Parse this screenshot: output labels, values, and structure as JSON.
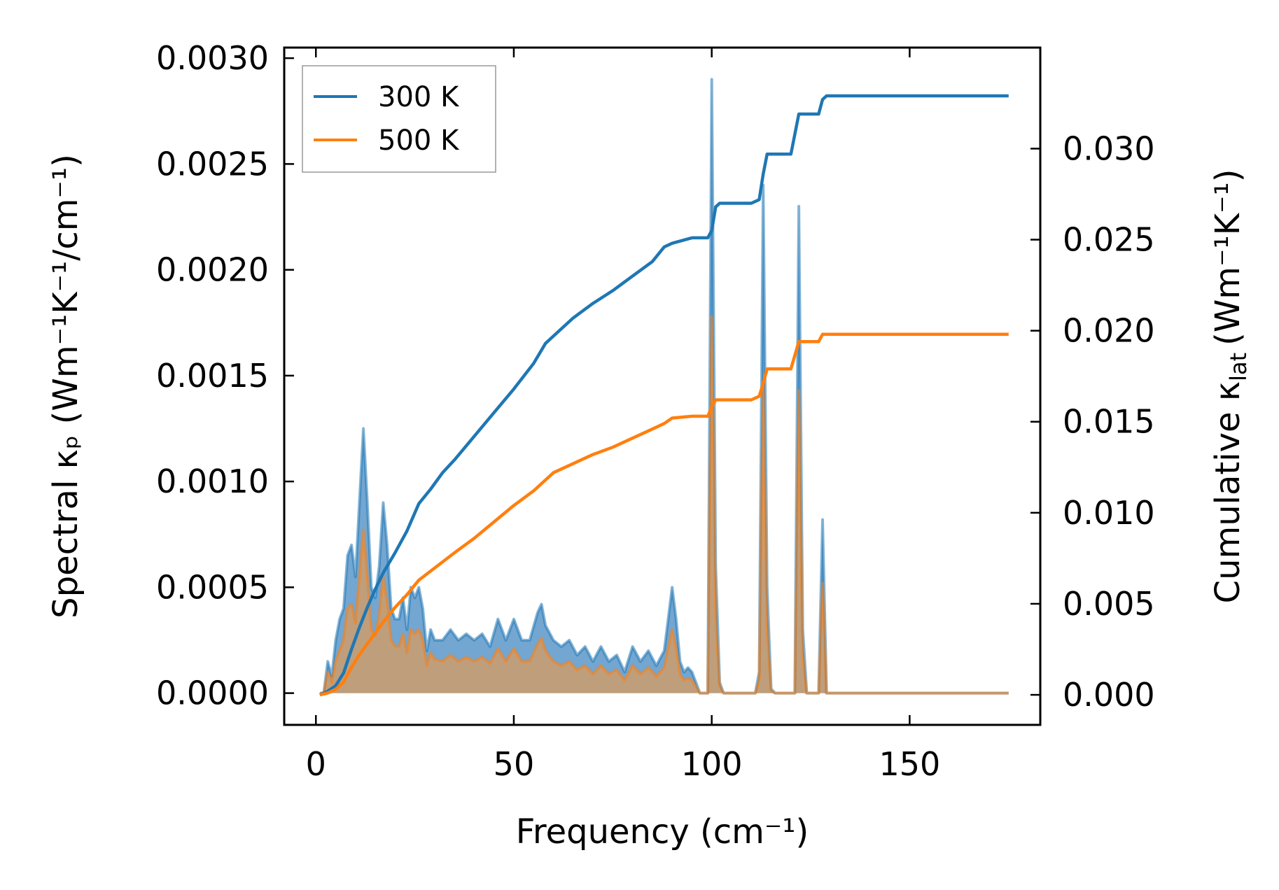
{
  "chart_data": {
    "type": "line",
    "xlabel": "Frequency (cm⁻¹)",
    "ylabel_left": "Spectral κₚ (Wm⁻¹K⁻¹/cm⁻¹)",
    "ylabel_right": "Cumulative κ_lat (Wm⁻¹K⁻¹)",
    "ylabel_right_main": "Cumulative κ",
    "ylabel_right_sub": "lat",
    "ylabel_right_unit": "(Wm⁻¹K⁻¹)",
    "xlim": [
      -8,
      183
    ],
    "ylim_left": [
      -0.00015,
      0.00305
    ],
    "ylim_right": [
      -0.00165,
      0.03555
    ],
    "x_ticks": [
      0,
      50,
      100,
      150
    ],
    "x_tick_labels": [
      "0",
      "50",
      "100",
      "150"
    ],
    "y_left_ticks": [
      0,
      0.0005,
      0.001,
      0.0015,
      0.002,
      0.0025,
      0.003
    ],
    "y_left_tick_labels": [
      "0.0000",
      "0.0005",
      "0.0010",
      "0.0015",
      "0.0020",
      "0.0025",
      "0.0030"
    ],
    "y_right_ticks": [
      0,
      0.005,
      0.01,
      0.015,
      0.02,
      0.025,
      0.03
    ],
    "y_right_tick_labels": [
      "0.000",
      "0.005",
      "0.010",
      "0.015",
      "0.020",
      "0.025",
      "0.030"
    ],
    "legend": {
      "placement": "top-left",
      "entries": [
        "300 K",
        "500 K"
      ]
    },
    "grid": false,
    "colors": {
      "s300": "#1f77b4",
      "s500": "#ff7f0e",
      "s300_fill": "#5a97c8",
      "s500_fill": "#c89d72"
    },
    "series": [
      {
        "name": "300 K",
        "role": "spectral",
        "axis": "left",
        "x": [
          1,
          2,
          3,
          4,
          5,
          6,
          7,
          8,
          9,
          10,
          11,
          12,
          13,
          14,
          15,
          16,
          17,
          18,
          19,
          20,
          21,
          22,
          23,
          24,
          25,
          26,
          27,
          28,
          29,
          30,
          32,
          34,
          36,
          38,
          40,
          42,
          44,
          46,
          48,
          50,
          52,
          54,
          56,
          57,
          58,
          60,
          62,
          64,
          66,
          68,
          70,
          72,
          74,
          76,
          78,
          80,
          82,
          84,
          86,
          88,
          89,
          90,
          91,
          92,
          93,
          94,
          95,
          96,
          97,
          98,
          99,
          100,
          101,
          102,
          103,
          104,
          106,
          108,
          110,
          111,
          112,
          113,
          114,
          115,
          116,
          118,
          120,
          121,
          122,
          123,
          124,
          126,
          127,
          128,
          129,
          130,
          140,
          150,
          160,
          170,
          175
        ],
        "values": [
          0,
          0,
          0.00015,
          8e-05,
          0.00025,
          0.00035,
          0.0004,
          0.00065,
          0.0007,
          0.00055,
          0.0009,
          0.00125,
          0.0009,
          0.0005,
          0.00045,
          0.0006,
          0.0009,
          0.0007,
          0.0004,
          0.00035,
          0.00035,
          0.00045,
          0.0003,
          0.0005,
          0.00045,
          0.0005,
          0.0004,
          0.0002,
          0.0003,
          0.00025,
          0.00025,
          0.0003,
          0.00025,
          0.00028,
          0.00025,
          0.00028,
          0.00022,
          0.00035,
          0.00025,
          0.00035,
          0.00025,
          0.00025,
          0.00038,
          0.00042,
          0.00032,
          0.00025,
          0.00022,
          0.00025,
          0.00018,
          0.00022,
          0.00015,
          0.00022,
          0.00015,
          0.00018,
          0.0001,
          0.00022,
          0.00015,
          0.0002,
          0.00013,
          0.0002,
          0.00035,
          0.0005,
          0.00035,
          0.00015,
          0.0001,
          0.00012,
          0.0001,
          5e-05,
          0,
          0,
          0,
          0.0029,
          0.0006,
          5e-05,
          0,
          0,
          0,
          0,
          0,
          0,
          0.0001,
          0.0024,
          0.0005,
          2e-05,
          0,
          0,
          0,
          0,
          0.0023,
          0.0003,
          0,
          0,
          0,
          0.00082,
          0,
          0,
          0,
          0,
          0,
          0,
          0
        ]
      },
      {
        "name": "500 K",
        "role": "spectral",
        "axis": "left",
        "x": [
          1,
          2,
          3,
          4,
          5,
          6,
          7,
          8,
          9,
          10,
          11,
          12,
          13,
          14,
          15,
          16,
          17,
          18,
          19,
          20,
          21,
          22,
          23,
          24,
          25,
          26,
          27,
          28,
          29,
          30,
          32,
          34,
          36,
          38,
          40,
          42,
          44,
          46,
          48,
          50,
          52,
          54,
          56,
          57,
          58,
          60,
          62,
          64,
          66,
          68,
          70,
          72,
          74,
          76,
          78,
          80,
          82,
          84,
          86,
          88,
          89,
          90,
          91,
          92,
          93,
          94,
          95,
          96,
          97,
          98,
          99,
          100,
          101,
          102,
          103,
          104,
          106,
          108,
          110,
          111,
          112,
          113,
          114,
          115,
          116,
          118,
          120,
          121,
          122,
          123,
          124,
          126,
          127,
          128,
          129,
          130,
          140,
          150,
          160,
          170,
          175
        ],
        "values": [
          0,
          0,
          0.0001,
          5e-05,
          0.00015,
          0.0002,
          0.00025,
          0.0004,
          0.00042,
          0.00033,
          0.00055,
          0.00077,
          0.00055,
          0.0003,
          0.00027,
          0.00037,
          0.00055,
          0.00043,
          0.00025,
          0.00022,
          0.00022,
          0.00028,
          0.00019,
          0.0003,
          0.00028,
          0.0003,
          0.00025,
          0.00013,
          0.00019,
          0.00016,
          0.00015,
          0.00018,
          0.00015,
          0.00017,
          0.00015,
          0.00017,
          0.00014,
          0.00021,
          0.00015,
          0.00021,
          0.00015,
          0.00015,
          0.00023,
          0.00026,
          0.0002,
          0.00015,
          0.00013,
          0.00015,
          0.00011,
          0.00013,
          9e-05,
          0.00013,
          9e-05,
          0.00011,
          6e-05,
          0.00013,
          9e-05,
          0.00012,
          8e-05,
          0.00012,
          0.00021,
          0.0003,
          0.00021,
          9e-05,
          6e-05,
          7e-05,
          6e-05,
          3e-05,
          0,
          0,
          0,
          0.00178,
          0.00036,
          3e-05,
          0,
          0,
          0,
          0,
          0,
          0,
          6e-05,
          0.00147,
          0.0003,
          1e-05,
          0,
          0,
          0,
          0,
          0.00143,
          0.00018,
          0,
          0,
          0,
          0.00052,
          0,
          0,
          0,
          0,
          0,
          0,
          0
        ]
      },
      {
        "name": "300 K",
        "role": "cumulative",
        "axis": "right",
        "x": [
          1,
          3,
          5,
          7,
          9,
          11,
          13,
          15,
          17,
          20,
          23,
          26,
          29,
          32,
          35,
          40,
          45,
          50,
          55,
          58,
          60,
          65,
          70,
          75,
          80,
          85,
          88,
          90,
          95,
          99,
          100,
          101,
          102,
          105,
          110,
          112,
          113,
          114,
          120,
          122,
          123,
          127,
          128,
          129,
          140,
          150,
          160,
          170,
          175
        ],
        "values": [
          0,
          0.0002,
          0.0005,
          0.0012,
          0.0025,
          0.0037,
          0.0048,
          0.0058,
          0.0067,
          0.0078,
          0.009,
          0.0105,
          0.0113,
          0.0122,
          0.0129,
          0.0142,
          0.0155,
          0.0168,
          0.0182,
          0.0193,
          0.0197,
          0.0207,
          0.0215,
          0.0222,
          0.023,
          0.0238,
          0.0246,
          0.0248,
          0.0251,
          0.0251,
          0.0255,
          0.0268,
          0.027,
          0.027,
          0.027,
          0.0272,
          0.0286,
          0.0297,
          0.0297,
          0.0319,
          0.0319,
          0.0319,
          0.0327,
          0.0329,
          0.0329,
          0.0329,
          0.0329,
          0.0329,
          0.0329
        ]
      },
      {
        "name": "500 K",
        "role": "cumulative",
        "axis": "right",
        "x": [
          1,
          3,
          5,
          7,
          9,
          11,
          13,
          15,
          17,
          20,
          23,
          26,
          29,
          32,
          35,
          40,
          45,
          50,
          55,
          58,
          60,
          65,
          70,
          75,
          80,
          85,
          88,
          90,
          95,
          99,
          100,
          101,
          102,
          105,
          110,
          112,
          113,
          114,
          120,
          122,
          123,
          127,
          128,
          129,
          140,
          150,
          160,
          170,
          175
        ],
        "values": [
          0,
          0.0001,
          0.0003,
          0.0007,
          0.0015,
          0.0022,
          0.0028,
          0.0034,
          0.004,
          0.0048,
          0.0055,
          0.0063,
          0.0068,
          0.0073,
          0.0078,
          0.0086,
          0.0095,
          0.0104,
          0.0112,
          0.0118,
          0.0122,
          0.0127,
          0.0132,
          0.0136,
          0.0141,
          0.0146,
          0.0149,
          0.0152,
          0.0153,
          0.0153,
          0.0158,
          0.0162,
          0.0162,
          0.0162,
          0.0162,
          0.0164,
          0.0171,
          0.0179,
          0.0179,
          0.0194,
          0.0194,
          0.0194,
          0.0198,
          0.0198,
          0.0198,
          0.0198,
          0.0198,
          0.0198,
          0.0198
        ]
      }
    ]
  }
}
